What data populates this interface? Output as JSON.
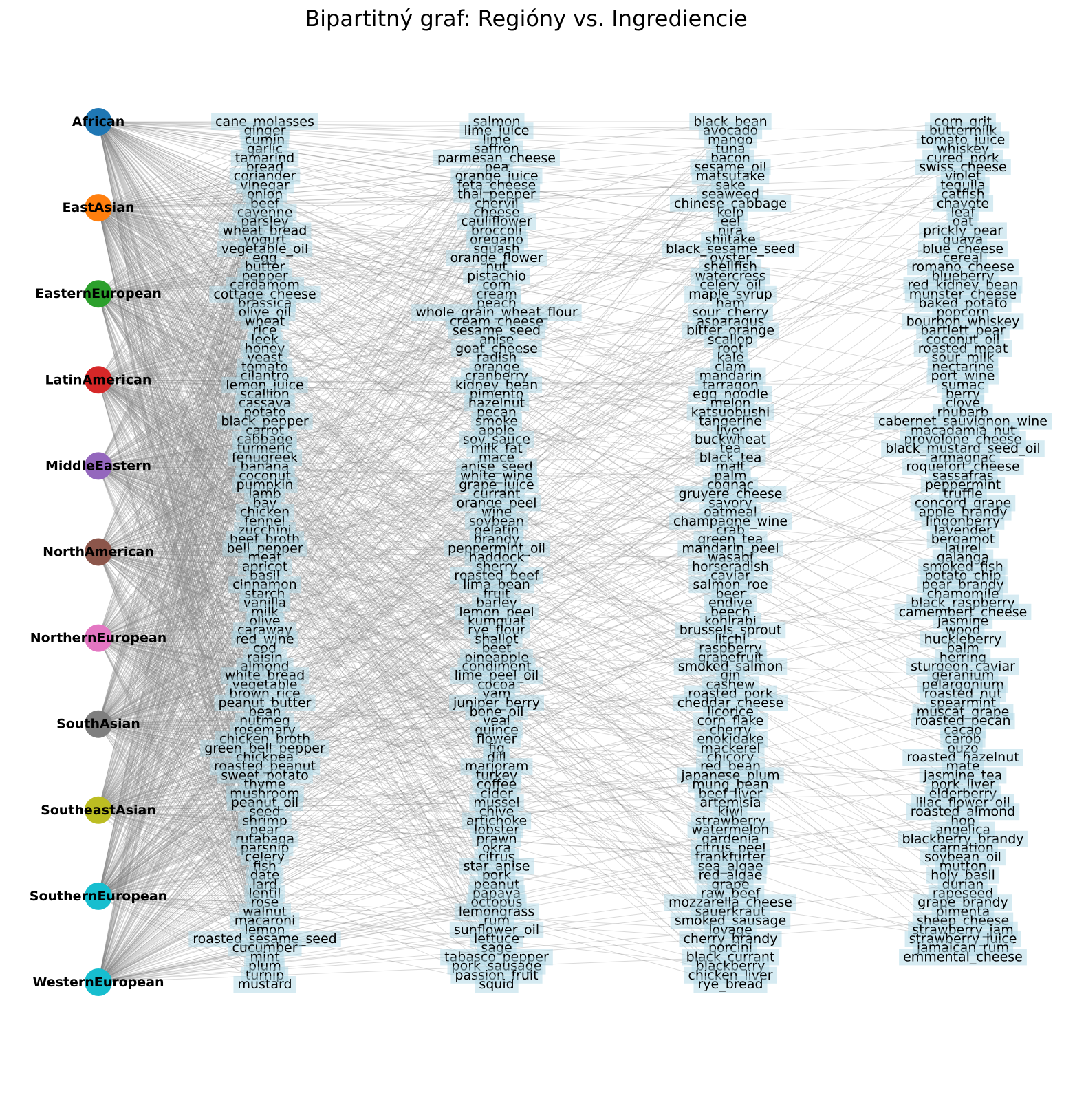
{
  "title": "Bipartitný graf: Regióny vs. Ingrediencie",
  "colors": {
    "edge": "#808080",
    "label_box": "#add8e6",
    "text": "#000000",
    "background": "#ffffff"
  },
  "regions": [
    {
      "name": "African",
      "color": "#1f77b4"
    },
    {
      "name": "EastAsian",
      "color": "#ff7f0e"
    },
    {
      "name": "EasternEuropean",
      "color": "#2ca02c"
    },
    {
      "name": "LatinAmerican",
      "color": "#d62728"
    },
    {
      "name": "MiddleEastern",
      "color": "#9467bd"
    },
    {
      "name": "NorthAmerican",
      "color": "#8c564b"
    },
    {
      "name": "NorthernEuropean",
      "color": "#e377c2"
    },
    {
      "name": "SouthAsian",
      "color": "#7f7f7f"
    },
    {
      "name": "SoutheastAsian",
      "color": "#bcbd22"
    },
    {
      "name": "SouthernEuropean",
      "color": "#17becf"
    },
    {
      "name": "WesternEuropean",
      "color": "#17becf"
    }
  ],
  "ingredient_columns": [
    [
      "cane_molasses",
      "ginger",
      "cumin",
      "garlic",
      "tamarind",
      "bread",
      "coriander",
      "vinegar",
      "onion",
      "beef",
      "cayenne",
      "parsley",
      "wheat_bread",
      "yogurt",
      "vegetable_oil",
      "egg",
      "butter",
      "pepper",
      "cardamom",
      "cottage_cheese",
      "brassica",
      "olive_oil",
      "wheat",
      "rice",
      "leek",
      "honey",
      "yeast",
      "tomato",
      "cilantro",
      "lemon_juice",
      "scallion",
      "cassava",
      "potato",
      "black_pepper",
      "carrot",
      "cabbage",
      "turmeric",
      "fenugreek",
      "banana",
      "coconut",
      "pumpkin",
      "lamb",
      "bay",
      "chicken",
      "fennel",
      "zucchini",
      "beef_broth",
      "bell_pepper",
      "meat",
      "apricot",
      "basil",
      "cinnamon",
      "starch",
      "vanilla",
      "milk",
      "olive",
      "caraway",
      "red_wine",
      "cod",
      "raisin",
      "almond",
      "white_bread",
      "vegetable",
      "brown_rice",
      "peanut_butter",
      "bean",
      "nutmeg",
      "rosemary",
      "chicken_broth",
      "green_bell_pepper",
      "chickpea",
      "roasted_peanut",
      "sweet_potato",
      "thyme",
      "mushroom",
      "peanut_oil",
      "seed",
      "shrimp",
      "pear",
      "rutabaga",
      "parsnip",
      "celery",
      "fish",
      "date",
      "lard",
      "lentil",
      "rose",
      "walnut",
      "macaroni",
      "lemon",
      "roasted_sesame_seed",
      "cucumber",
      "mint",
      "plum",
      "turnip",
      "mustard"
    ],
    [
      "salmon",
      "lime_juice",
      "lime",
      "saffron",
      "parmesan_cheese",
      "pea",
      "orange_juice",
      "feta_cheese",
      "thai_pepper",
      "chervil",
      "cheese",
      "cauliflower",
      "broccoli",
      "oregano",
      "squash",
      "orange_flower",
      "nut",
      "pistachio",
      "corn",
      "cream",
      "peach",
      "whole_grain_wheat_flour",
      "cream_cheese",
      "sesame_seed",
      "anise",
      "goat_cheese",
      "radish",
      "orange",
      "cranberry",
      "kidney_bean",
      "pimento",
      "hazelnut",
      "pecan",
      "smoke",
      "apple",
      "soy_sauce",
      "milk_fat",
      "mace",
      "anise_seed",
      "white_wine",
      "grape_juice",
      "currant",
      "orange_peel",
      "wine",
      "soybean",
      "gelatin",
      "brandy",
      "peppermint_oil",
      "haddock",
      "sherry",
      "roasted_beef",
      "lima_bean",
      "fruit",
      "barley",
      "lemon_peel",
      "kumquat",
      "rye_flour",
      "shallot",
      "beet",
      "pineapple",
      "condiment",
      "lime_peel_oil",
      "cocoa",
      "yam",
      "juniper_berry",
      "bone_oil",
      "veal",
      "quince",
      "flower",
      "fig",
      "dill",
      "marjoram",
      "turkey",
      "coffee",
      "cider",
      "mussel",
      "chive",
      "artichoke",
      "lobster",
      "prawn",
      "okra",
      "citrus",
      "star_anise",
      "pork",
      "peanut",
      "papaya",
      "octopus",
      "lemongrass",
      "rum",
      "sunflower_oil",
      "lettuce",
      "sage",
      "tabasco_pepper",
      "pork_sausage",
      "passion_fruit",
      "squid"
    ],
    [
      "black_bean",
      "avocado",
      "mango",
      "tuna",
      "bacon",
      "sesame_oil",
      "matsutake",
      "sake",
      "seaweed",
      "chinese_cabbage",
      "kelp",
      "eel",
      "nira",
      "shiitake",
      "black_sesame_seed",
      "oyster",
      "shellfish",
      "watercress",
      "celery_oil",
      "maple_syrup",
      "ham",
      "sour_cherry",
      "asparagus",
      "bitter_orange",
      "scallop",
      "root",
      "kale",
      "clam",
      "mandarin",
      "tarragon",
      "egg_noodle",
      "melon",
      "katsuobushi",
      "tangerine",
      "liver",
      "buckwheat",
      "tea",
      "black_tea",
      "malt",
      "palm",
      "cognac",
      "gruyere_cheese",
      "savory",
      "oatmeal",
      "champagne_wine",
      "crab",
      "green_tea",
      "mandarin_peel",
      "wasabi",
      "horseradish",
      "caviar",
      "salmon_roe",
      "beer",
      "endive",
      "beech",
      "kohlrabi",
      "brussels_sprout",
      "litchi",
      "raspberry",
      "grapefruit",
      "smoked_salmon",
      "gin",
      "cashew",
      "roasted_pork",
      "cheddar_cheese",
      "licorice",
      "corn_flake",
      "cherry",
      "enokidake",
      "mackerel",
      "chicory",
      "red_bean",
      "japanese_plum",
      "mung_bean",
      "beef_liver",
      "artemisia",
      "kiwi",
      "strawberry",
      "watermelon",
      "gardenia",
      "citrus_peel",
      "frankfurter",
      "sea_algae",
      "red_algae",
      "grape",
      "raw_beef",
      "mozzarella_cheese",
      "sauerkraut",
      "smoked_sausage",
      "lovage",
      "cherry_brandy",
      "porcini",
      "black_currant",
      "blackberry",
      "chicken_liver",
      "rye_bread"
    ],
    [
      "corn_grit",
      "buttermilk",
      "tomato_juice",
      "whiskey",
      "cured_pork",
      "swiss_cheese",
      "violet",
      "tequila",
      "catfish",
      "chayote",
      "leaf",
      "oat",
      "prickly_pear",
      "guava",
      "blue_cheese",
      "cereal",
      "romano_cheese",
      "blueberry",
      "red_kidney_bean",
      "munster_cheese",
      "baked_potato",
      "popcorn",
      "bourbon_whiskey",
      "bartlett_pear",
      "coconut_oil",
      "roasted_meat",
      "sour_milk",
      "nectarine",
      "port_wine",
      "sumac",
      "berry",
      "clove",
      "rhubarb",
      "cabernet_sauvignon_wine",
      "macadamia_nut",
      "provolone_cheese",
      "black_mustard_seed_oil",
      "armagnac",
      "roquefort_cheese",
      "sassafras",
      "peppermint",
      "truffle",
      "concord_grape",
      "apple_brandy",
      "lingonberry",
      "lavender",
      "bergamot",
      "laurel",
      "galanga",
      "smoked_fish",
      "potato_chip",
      "pear_brandy",
      "chamomile",
      "black_raspberry",
      "camembert_cheese",
      "jasmine",
      "wood",
      "huckleberry",
      "balm",
      "herring",
      "sturgeon_caviar",
      "geranium",
      "pelargonium",
      "roasted_nut",
      "spearmint",
      "muscat_grape",
      "roasted_pecan",
      "cacao",
      "carob",
      "ouzo",
      "roasted_hazelnut",
      "mate",
      "jasmine_tea",
      "pork_liver",
      "elderberry",
      "lilac_flower_oil",
      "roasted_almond",
      "hop",
      "angelica",
      "blackberry_brandy",
      "carnation",
      "soybean_oil",
      "mutton",
      "holy_basil",
      "durian",
      "rapeseed",
      "grape_brandy",
      "pimenta",
      "sheep_cheese",
      "strawberry_jam",
      "strawberry_juice",
      "jamaican_rum",
      "emmental_cheese"
    ]
  ]
}
